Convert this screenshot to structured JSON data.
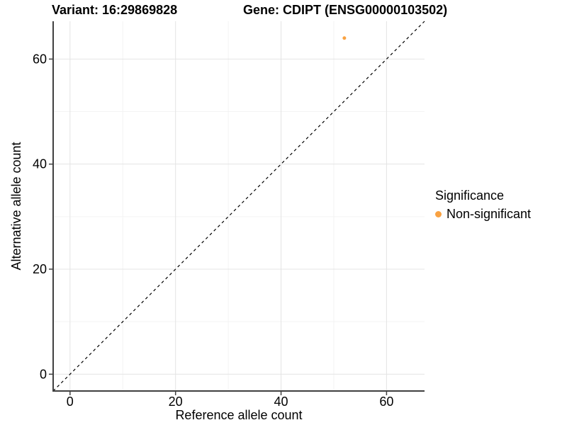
{
  "figure": {
    "titles": {
      "left": "Variant: 16:29869828",
      "right": "Gene: CDIPT (ENSG00000103502)"
    }
  },
  "legend": {
    "title": "Significance",
    "items": [
      {
        "label": "Non-significant",
        "color": "#F9A242"
      }
    ]
  },
  "chart_data": {
    "type": "scatter",
    "title": "Variant: 16:29869828 / Gene: CDIPT (ENSG00000103502)",
    "xlabel": "Reference allele count",
    "ylabel": "Alternative allele count",
    "xlim": [
      -3.2,
      67.2
    ],
    "ylim": [
      -3.2,
      67.2
    ],
    "xticks": [
      0,
      20,
      40,
      60
    ],
    "yticks": [
      0,
      20,
      40,
      60
    ],
    "minor_gridlines_x": [
      10,
      30,
      50
    ],
    "minor_gridlines_y": [
      10,
      30,
      50
    ],
    "grid": true,
    "legend_position": "right",
    "identity_line": {
      "slope": 1,
      "intercept": 0,
      "style": "dashed",
      "color": "#000000"
    },
    "series": [
      {
        "name": "Non-significant",
        "color": "#F9A242",
        "points": [
          {
            "x": 52,
            "y": 64
          }
        ]
      }
    ]
  },
  "colors": {
    "background": "#FFFFFF",
    "grid_major": "#E4E4E4",
    "grid_minor": "#F3F3F3",
    "axis_line": "#404040",
    "text": "#000000",
    "point": "#F9A242"
  }
}
